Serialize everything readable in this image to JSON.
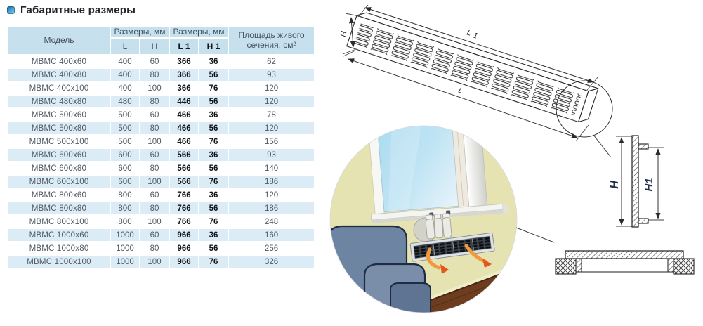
{
  "page": {
    "title": "Габаритные размеры"
  },
  "colors": {
    "accent_blue": "#2e86b8",
    "table_header_bg": "#c6e0ee",
    "table_stripe_bg": "#dcecf6",
    "text_gray": "#4f5a64",
    "text_dark": "#101316",
    "arrow_orange": "#ee7c28",
    "wall": "#e6e3b2",
    "sofa_blue": "#6d84a2",
    "floor_brown": "#6e3d20"
  },
  "table": {
    "header": {
      "model": "Модель",
      "sizes_mm_1": "Размеры, мм",
      "sizes_mm_2": "Размеры, мм",
      "area": "Площадь живого сечения, см²",
      "l": "L",
      "h": "H",
      "l1": "L 1",
      "h1": "H 1"
    },
    "col_keys": [
      "model",
      "l",
      "h",
      "l1",
      "h1",
      "area"
    ],
    "rows": [
      [
        "МВМС 400x60",
        400,
        60,
        366,
        36,
        62
      ],
      [
        "МВМС 400x80",
        400,
        80,
        366,
        56,
        93
      ],
      [
        "МВМС 400x100",
        400,
        100,
        366,
        76,
        120
      ],
      [
        "МВМС 480x80",
        480,
        80,
        446,
        56,
        120
      ],
      [
        "МВМС 500x60",
        500,
        60,
        466,
        36,
        78
      ],
      [
        "МВМС 500x80",
        500,
        80,
        466,
        56,
        120
      ],
      [
        "МВМС 500x100",
        500,
        100,
        466,
        76,
        156
      ],
      [
        "МВМС 600x60",
        600,
        60,
        566,
        36,
        93
      ],
      [
        "МВМС 600x80",
        600,
        80,
        566,
        56,
        140
      ],
      [
        "МВМС 600x100",
        600,
        100,
        566,
        76,
        186
      ],
      [
        "МВМС 800x60",
        800,
        60,
        766,
        36,
        120
      ],
      [
        "МВМС 800x80",
        800,
        80,
        766,
        56,
        186
      ],
      [
        "МВМС 800x100",
        800,
        100,
        766,
        76,
        248
      ],
      [
        "МВМС 1000x60",
        1000,
        60,
        966,
        36,
        160
      ],
      [
        "МВМС 1000x80",
        1000,
        80,
        966,
        56,
        256
      ],
      [
        "МВМС 1000x100",
        1000,
        100,
        966,
        76,
        326
      ]
    ]
  },
  "drawings": {
    "perspective": {
      "label_l1_main": "L",
      "label_l1_sub": "1",
      "label_l": "L",
      "label_h": "H"
    },
    "section": {
      "label_h": "H",
      "label_h1": "H1"
    }
  }
}
